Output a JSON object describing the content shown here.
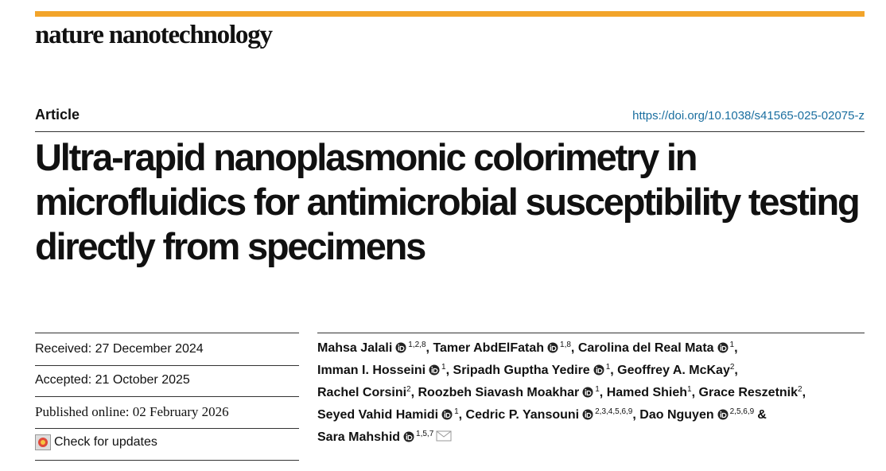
{
  "header": {
    "journal": "nature nanotechnology",
    "article_type": "Article",
    "doi": "https://doi.org/10.1038/s41565-025-02075-z"
  },
  "title": "Ultra-rapid nanoplasmonic colorimetry in microfluidics for antimicrobial susceptibility testing directly from specimens",
  "dates": {
    "received": "Received: 27 December 2024",
    "accepted": "Accepted: 21 October 2025",
    "published": "Published online: 02 February 2026"
  },
  "check_updates": "Check for updates",
  "authors": [
    {
      "name": "Mahsa Jalali",
      "orcid": true,
      "affiliations": "1,2,8",
      "separator": ","
    },
    {
      "name": "Tamer AbdElFatah",
      "orcid": true,
      "affiliations": "1,8",
      "separator": ","
    },
    {
      "name": "Carolina del Real Mata",
      "orcid": true,
      "affiliations": "1",
      "separator": ","
    },
    {
      "name": "Imman I. Hosseini",
      "orcid": true,
      "affiliations": "1",
      "separator": ","
    },
    {
      "name": "Sripadh Guptha Yedire",
      "orcid": true,
      "affiliations": "1",
      "separator": ","
    },
    {
      "name": "Geoffrey A. McKay",
      "orcid": false,
      "affiliations": "2",
      "separator": ","
    },
    {
      "name": "Rachel Corsini",
      "orcid": false,
      "affiliations": "2",
      "separator": ","
    },
    {
      "name": "Roozbeh Siavash Moakhar",
      "orcid": true,
      "affiliations": "1",
      "separator": ","
    },
    {
      "name": "Hamed Shieh",
      "orcid": false,
      "affiliations": "1",
      "separator": ","
    },
    {
      "name": "Grace Reszetnik",
      "orcid": false,
      "affiliations": "2",
      "separator": ","
    },
    {
      "name": "Seyed Vahid Hamidi",
      "orcid": true,
      "affiliations": "1",
      "separator": ","
    },
    {
      "name": "Cedric P. Yansouni",
      "orcid": true,
      "affiliations": "2,3,4,5,6,9",
      "separator": ","
    },
    {
      "name": "Dao Nguyen",
      "orcid": true,
      "affiliations": "2,5,6,9",
      "separator": "&"
    },
    {
      "name": "Sara Mahshid",
      "orcid": true,
      "affiliations": "1,5,7",
      "email": true
    }
  ]
}
